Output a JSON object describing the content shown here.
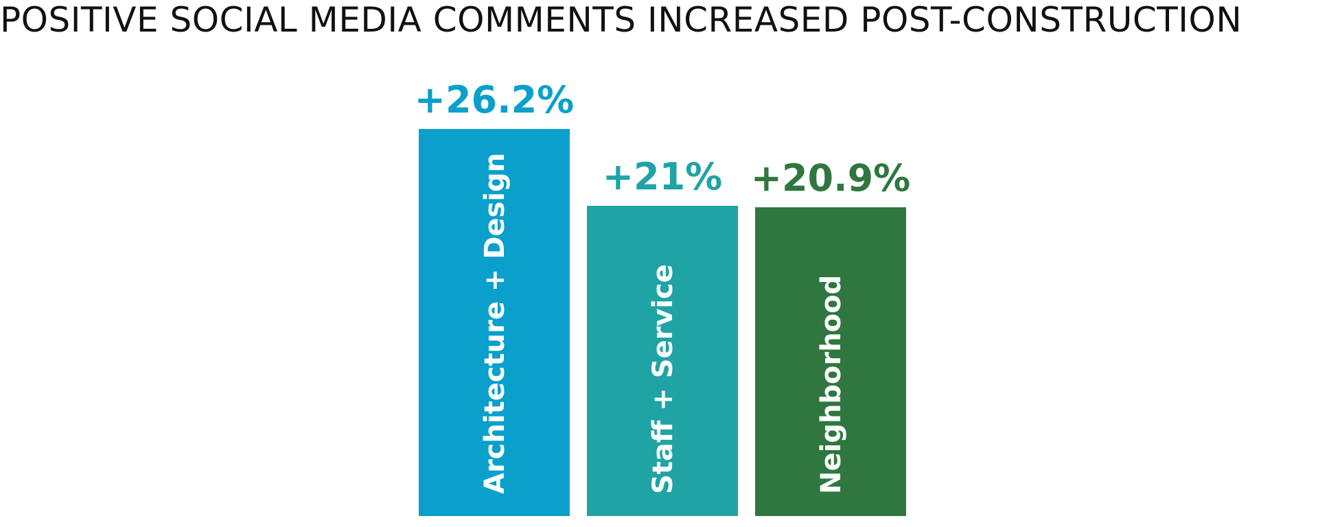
{
  "chart_data": {
    "type": "bar",
    "title": "POSITIVE SOCIAL MEDIA COMMENTS INCREASED POST-CONSTRUCTION",
    "categories": [
      "Architecture + Design",
      "Staff + Service",
      "Neighborhood"
    ],
    "values": [
      26.2,
      21,
      20.9
    ],
    "value_labels": [
      "+26.2%",
      "+21%",
      "+20.9%"
    ],
    "colors": [
      "#0aa0cb",
      "#20a3a5",
      "#2f773e"
    ],
    "ylim": [
      0,
      26.2
    ],
    "grid": false,
    "legend": "none",
    "category_label_orientation": "vertical-inside-bar"
  }
}
